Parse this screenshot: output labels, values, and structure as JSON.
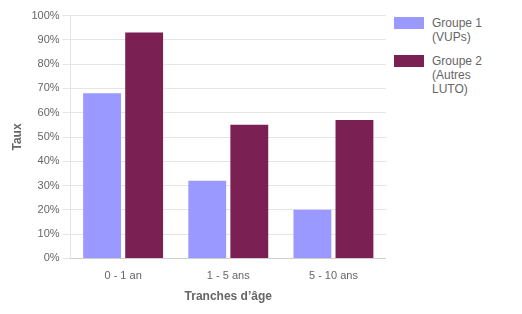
{
  "chart_data": {
    "type": "bar",
    "categories": [
      "0 - 1 an",
      "1 - 5 ans",
      "5 - 10 ans"
    ],
    "series": [
      {
        "name": "Groupe 1 (VUPs)",
        "color": "#9999ff",
        "values": [
          0.68,
          0.32,
          0.2
        ]
      },
      {
        "name": "Groupe 2 (Autres\nLUTO)",
        "color": "#7b2052",
        "values": [
          0.93,
          0.55,
          0.57
        ]
      }
    ],
    "xlabel": "Tranches d’âge",
    "ylabel": "Taux",
    "ylim": [
      0,
      1.0
    ],
    "yticks": [
      {
        "value": 0.0,
        "label": "0%"
      },
      {
        "value": 0.1,
        "label": "10%"
      },
      {
        "value": 0.2,
        "label": "20%"
      },
      {
        "value": 0.3,
        "label": "30%"
      },
      {
        "value": 0.4,
        "label": "40%"
      },
      {
        "value": 0.5,
        "label": "50%"
      },
      {
        "value": 0.6,
        "label": "60%"
      },
      {
        "value": 0.7,
        "label": "70%"
      },
      {
        "value": 0.8,
        "label": "80%"
      },
      {
        "value": 0.9,
        "label": "90%"
      },
      {
        "value": 1.0,
        "label": "100%"
      }
    ],
    "grid": true,
    "legend": "right"
  }
}
